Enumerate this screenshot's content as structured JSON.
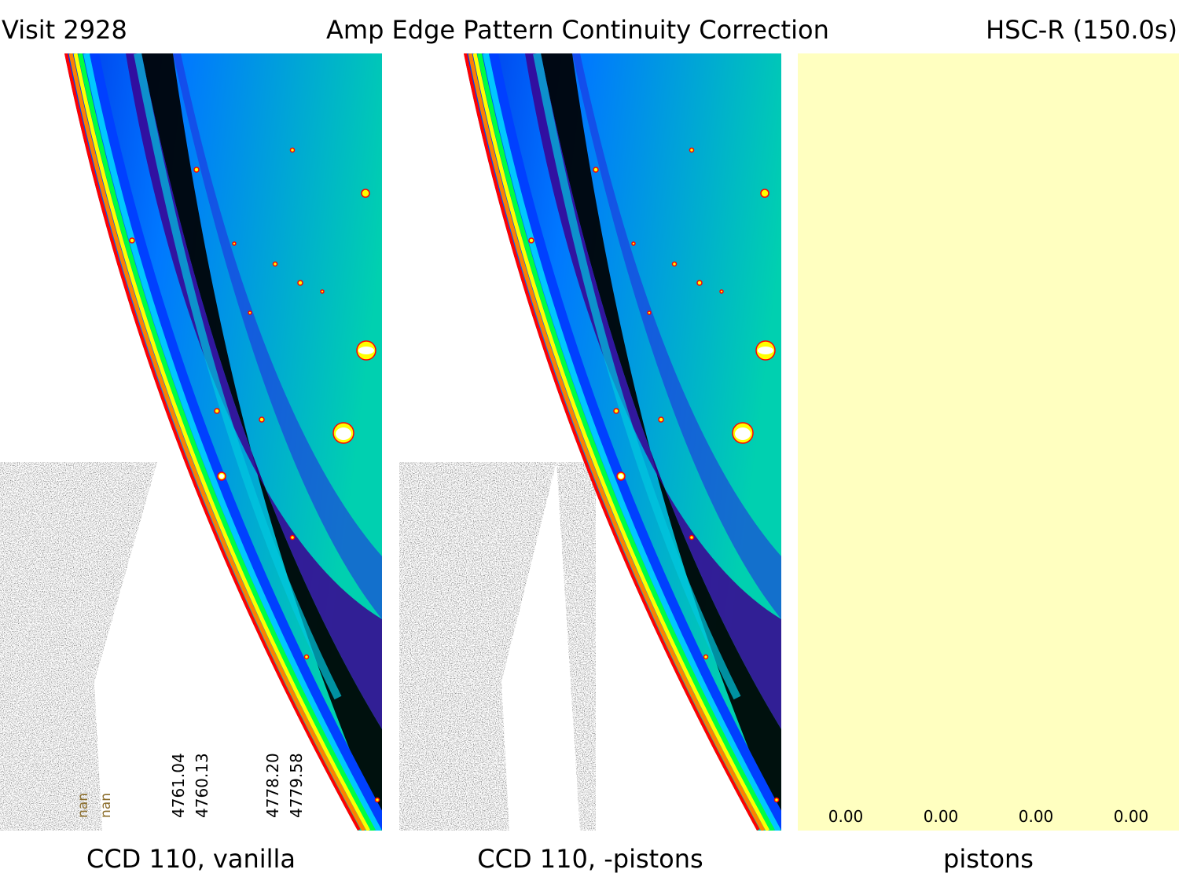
{
  "header": {
    "left": "Visit 2928",
    "center": "Amp Edge Pattern Continuity Correction",
    "right": "HSC-R (150.0s)"
  },
  "panels": {
    "vanilla": {
      "caption": "CCD 110, vanilla",
      "amp_labels": [
        "nan",
        "nan",
        "4761.04",
        "4760.13",
        "4778.20",
        "4779.58"
      ]
    },
    "corrected": {
      "caption": "CCD 110, -pistons"
    },
    "pistons": {
      "caption": "pistons",
      "values": [
        "0.00",
        "0.00",
        "0.00",
        "0.00"
      ],
      "fill_color": "#ffffc0"
    }
  },
  "colors": {
    "background_white": "#ffffff",
    "colormap": [
      "#000000",
      "#2a0050",
      "#4400a0",
      "#0018e0",
      "#0060ff",
      "#00b4ff",
      "#00e0a0",
      "#00ff40",
      "#ffff00",
      "#ff8000",
      "#ff0000",
      "#ffffff"
    ]
  }
}
